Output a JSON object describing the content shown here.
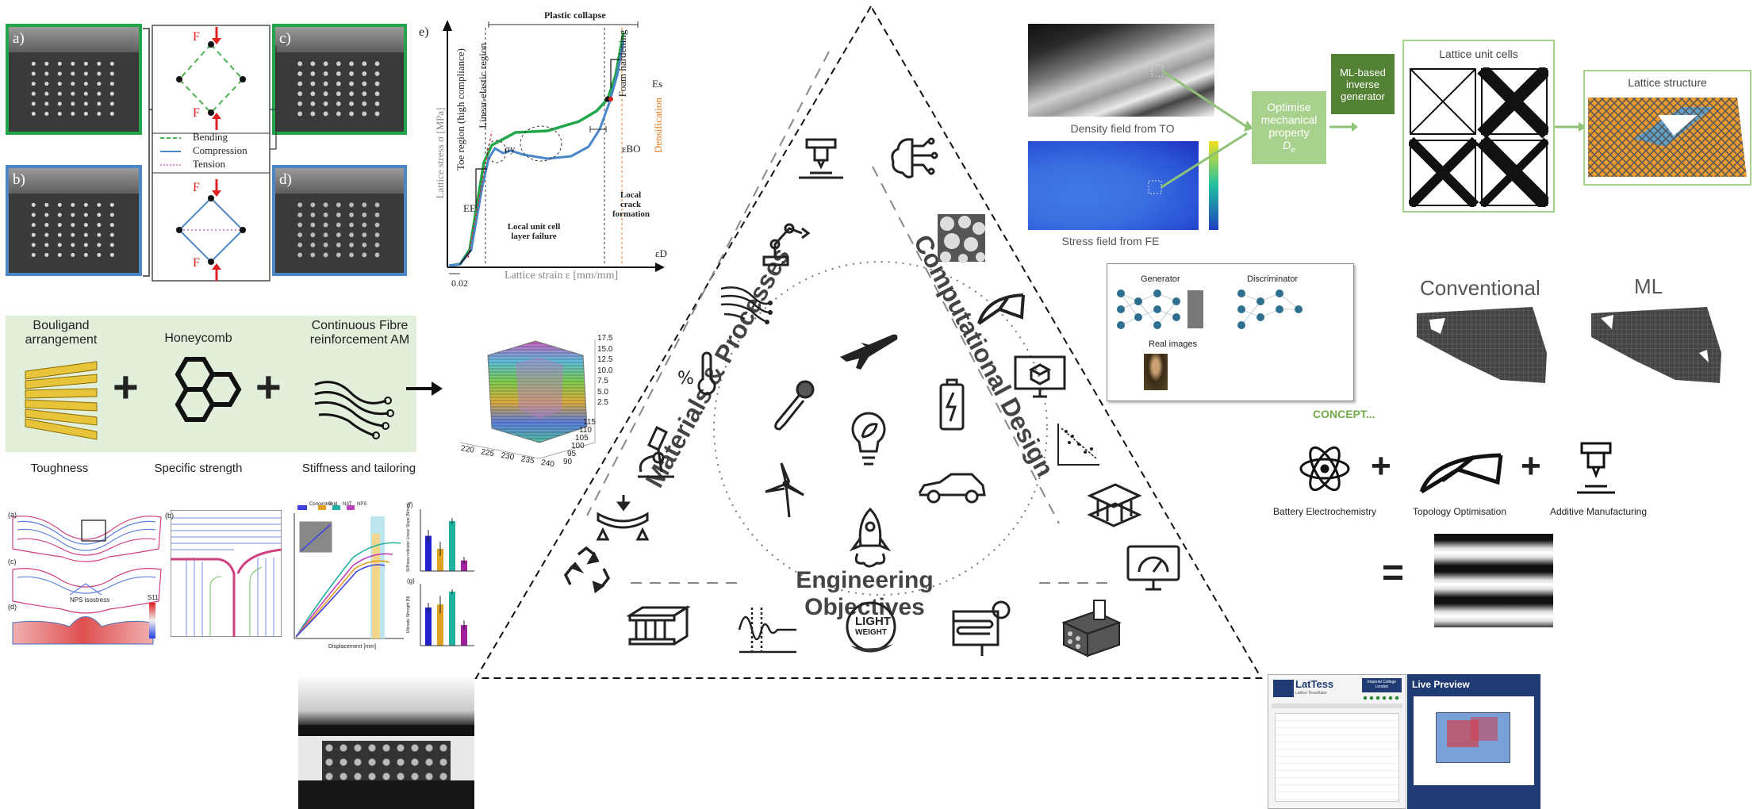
{
  "loading_panels": {
    "labels": [
      "a)",
      "b)",
      "c)",
      "d)"
    ],
    "force_label": "F",
    "legend": [
      "Bending",
      "Compression",
      "Tension"
    ],
    "colors": {
      "bending": "#4caf50",
      "compression": "#4a86c8",
      "tension": "#cc66cc",
      "force": "#e02020"
    }
  },
  "stress_strain": {
    "panel_label": "e)",
    "title": "Plastic collapse",
    "ylabel": "Lattice stress σ [MPa]",
    "xlabel": "Lattice strain ε [mm/mm]",
    "tick_x": "0.02",
    "regions": [
      "Toe region (high compliance)",
      "Linear-elastic region",
      "Foam hardening",
      "Densification"
    ],
    "annotations": {
      "ee": "EE",
      "es": "Es",
      "sigma_y": "σy",
      "eps_bo": "εBO",
      "eps_d": "εD",
      "local_failure": "Local unit cell layer failure",
      "crack": "Local crack formation"
    }
  },
  "composite": {
    "items": [
      "Bouligand arrangement",
      "Honeycomb",
      "Continuous Fibre reinforcement AM"
    ],
    "properties": [
      "Toughness",
      "Specific strength",
      "Stiffness and tailoring"
    ],
    "axis_z": [
      "17.5",
      "15.0",
      "12.5",
      "10.0",
      "7.5",
      "5.0",
      "2.5"
    ],
    "axis_x": [
      "220",
      "225",
      "230",
      "235",
      "240"
    ],
    "axis_y": [
      "115",
      "110",
      "105",
      "100",
      "95",
      "90"
    ]
  },
  "bottom_left": {
    "labels": [
      "(a)",
      "(b)",
      "(c)",
      "(d)",
      "(f)",
      "(g)"
    ],
    "legend": [
      "Concentric",
      "Grid",
      "NAT",
      "NPS"
    ],
    "xlabel": "Displacement [mm]",
    "ylabel_f": "Stiffness indicator Linear Slope [N/mm]",
    "ylabel_g": "Ultimate Strength [N]",
    "contour_label": "NPS isostress",
    "colorbar_label": "S11",
    "bar_chart_f": {
      "type": "bar",
      "categories": [
        "Concentric",
        "Grid",
        "NAT",
        "NPS"
      ],
      "values": [
        0.6,
        0.38,
        0.85,
        0.18
      ],
      "errors": [
        0.1,
        0.12,
        0.05,
        0.06
      ],
      "colors": [
        "#2222cc",
        "#e0a020",
        "#20b0a0",
        "#a020a0"
      ]
    },
    "bar_chart_g": {
      "type": "bar",
      "categories": [
        "Concentric",
        "Grid",
        "NAT",
        "NPS"
      ],
      "values": [
        0.65,
        0.7,
        0.92,
        0.35
      ],
      "errors": [
        0.08,
        0.15,
        0.04,
        0.08
      ],
      "colors": [
        "#2222cc",
        "#e0a020",
        "#20b0a0",
        "#a020a0"
      ]
    }
  },
  "triangle": {
    "left_side": "Materials & Processes",
    "right_side": "Computational Design",
    "bottom_side": "Engineering Objectives",
    "light_weight_badge": [
      "LIGHT",
      "WEIGHT"
    ],
    "icons_left": [
      "robot-arm-icon",
      "fibre-hand-icon",
      "temperature-humidity-icon",
      "bone-joint-icon",
      "microscope-icon",
      "beam-bending-icon",
      "recycle-icon"
    ],
    "icons_right": [
      "brain-circuit-icon",
      "foam-structure-icon",
      "topology-bridge-icon",
      "cad-monitor-icon",
      "battery-icon",
      "scatter-plot-icon",
      "sandwich-panel-icon",
      "dashboard-monitor-icon"
    ],
    "icons_top": [
      "3d-printer-icon"
    ],
    "icons_center": [
      "airplane-icon",
      "lightbulb-leaf-icon",
      "wind-turbine-icon",
      "car-icon",
      "rocket-icon"
    ],
    "icons_bottom": [
      "honeycomb-panel-icon",
      "vibration-icon",
      "light-weight-icon",
      "heat-exchanger-icon",
      "extrusion-die-icon",
      "gear-icon"
    ]
  },
  "ml_pipeline": {
    "density_caption": "Density field from TO",
    "stress_caption": "Stress field from FE",
    "optimise_label": "Optimise mechanical property",
    "optimise_symbol": "D",
    "optimise_subscript": "e",
    "generator_label": "ML-based inverse generator",
    "unit_cells_title": "Lattice unit cells",
    "structure_title": "Lattice structure",
    "colors": {
      "light_green": "#a9d18e",
      "dark_green": "#548235",
      "border_green": "#9dc985"
    }
  },
  "gan": {
    "generator": "Generator",
    "discriminator": "Discriminator",
    "real_images": "Real images"
  },
  "comparison": {
    "conventional": "Conventional",
    "ml": "ML"
  },
  "concept": {
    "title": "CONCEPT...",
    "items": [
      "Battery Electrochemistry",
      "Topology Optimisation",
      "Additive Manufacturing"
    ],
    "equals": "="
  },
  "software": {
    "app_title": "LatTess",
    "app_subtitle": "Lattice Tessellator",
    "institution": "Imperial College London",
    "preview_title": "Live Preview"
  }
}
